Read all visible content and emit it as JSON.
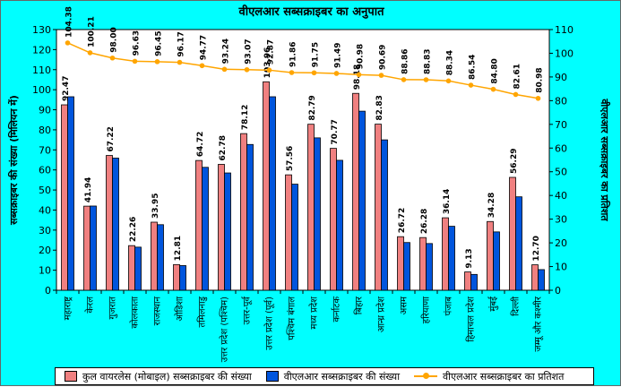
{
  "chart_data": {
    "type": "bar",
    "title": "वीएलआर सब्सक्राइबर का अनुपात",
    "ylabel_left": "सब्सक्राइबर की संख्या (मिलियन में)",
    "ylabel_right": "वीएलआर सब्सक्राइबर का प्रतिशत",
    "ylim_left": [
      0,
      130
    ],
    "ylim_right": [
      0,
      110
    ],
    "yticks_left": [
      0,
      10,
      20,
      30,
      40,
      50,
      60,
      70,
      80,
      90,
      100,
      110,
      120,
      130
    ],
    "yticks_right": [
      0,
      10,
      20,
      30,
      40,
      50,
      60,
      70,
      80,
      90,
      100,
      110
    ],
    "categories": [
      "महाराष्ट्र",
      "केरल",
      "गुजरात",
      "कोलकाता",
      "राजस्थान",
      "ओडिशा",
      "तमिलनाडु",
      "उत्तर प्रदेश (पश्चिम)",
      "उत्तर-पूर्व",
      "उत्तर प्रदेश (पूर्व)",
      "पश्चिम बंगाल",
      "मध्य प्रदेश",
      "कर्नाटक",
      "बिहार",
      "आन्ध्र प्रदेश",
      "असम",
      "हरियाणा",
      "पंजाब",
      "हिमाचल प्रदेश",
      "मुंबई",
      "दिल्ली",
      "जम्मू और कश्मीर"
    ],
    "series": [
      {
        "name": "कुल वायरलेस (मोबाइल) सब्सक्राइबर की संख्या",
        "color": "#f08080",
        "axis": "left",
        "values": [
          92.47,
          41.94,
          67.22,
          22.26,
          33.95,
          12.81,
          64.72,
          62.78,
          78.12,
          103.96,
          57.56,
          82.79,
          70.77,
          98.18,
          82.83,
          26.72,
          26.28,
          36.14,
          9.13,
          34.28,
          56.29,
          12.7
        ]
      },
      {
        "name": "वीएलआर सब्सक्राइबर की संख्या",
        "color": "#0055dd",
        "axis": "left",
        "values": [
          96.5,
          42.0,
          65.9,
          21.5,
          32.7,
          12.3,
          61.3,
          58.5,
          72.7,
          96.5,
          52.9,
          76.0,
          64.8,
          89.3,
          75.0,
          23.8,
          23.3,
          31.9,
          7.9,
          29.1,
          46.6,
          10.3
        ]
      },
      {
        "name": "वीएलआर सब्सक्राइबर का प्रतिशत",
        "color": "#ffa500",
        "axis": "right",
        "values": [
          104.38,
          100.21,
          98.0,
          96.63,
          96.45,
          96.17,
          94.77,
          93.24,
          93.07,
          92.87,
          91.86,
          91.75,
          91.49,
          90.98,
          90.69,
          88.86,
          88.83,
          88.34,
          86.54,
          84.8,
          82.61,
          80.98
        ]
      }
    ],
    "bar_labels": [
      "92.47",
      "41.94",
      "67.22",
      "22.26",
      "33.95",
      "12.81",
      "64.72",
      "62.78",
      "78.12",
      "103.96",
      "57.56",
      "82.79",
      "70.77",
      "98.18",
      "82.83",
      "26.72",
      "26.28",
      "36.14",
      "9.13",
      "34.28",
      "56.29",
      "12.70"
    ],
    "line_labels": [
      "104.38",
      "100.21",
      "98.00",
      "96.63",
      "96.45",
      "96.17",
      "94.77",
      "93.24",
      "93.07",
      "92.87",
      "91.86",
      "91.75",
      "91.49",
      "90.98",
      "90.69",
      "88.86",
      "88.83",
      "88.34",
      "86.54",
      "84.80",
      "82.61",
      "80.98"
    ],
    "legend_position": "bottom",
    "grid": false
  },
  "colors": {
    "background": "#00ffff",
    "plot_bg": "#ffffff",
    "bar1": "#f08080",
    "bar2": "#0055dd",
    "line": "#ffa500"
  }
}
